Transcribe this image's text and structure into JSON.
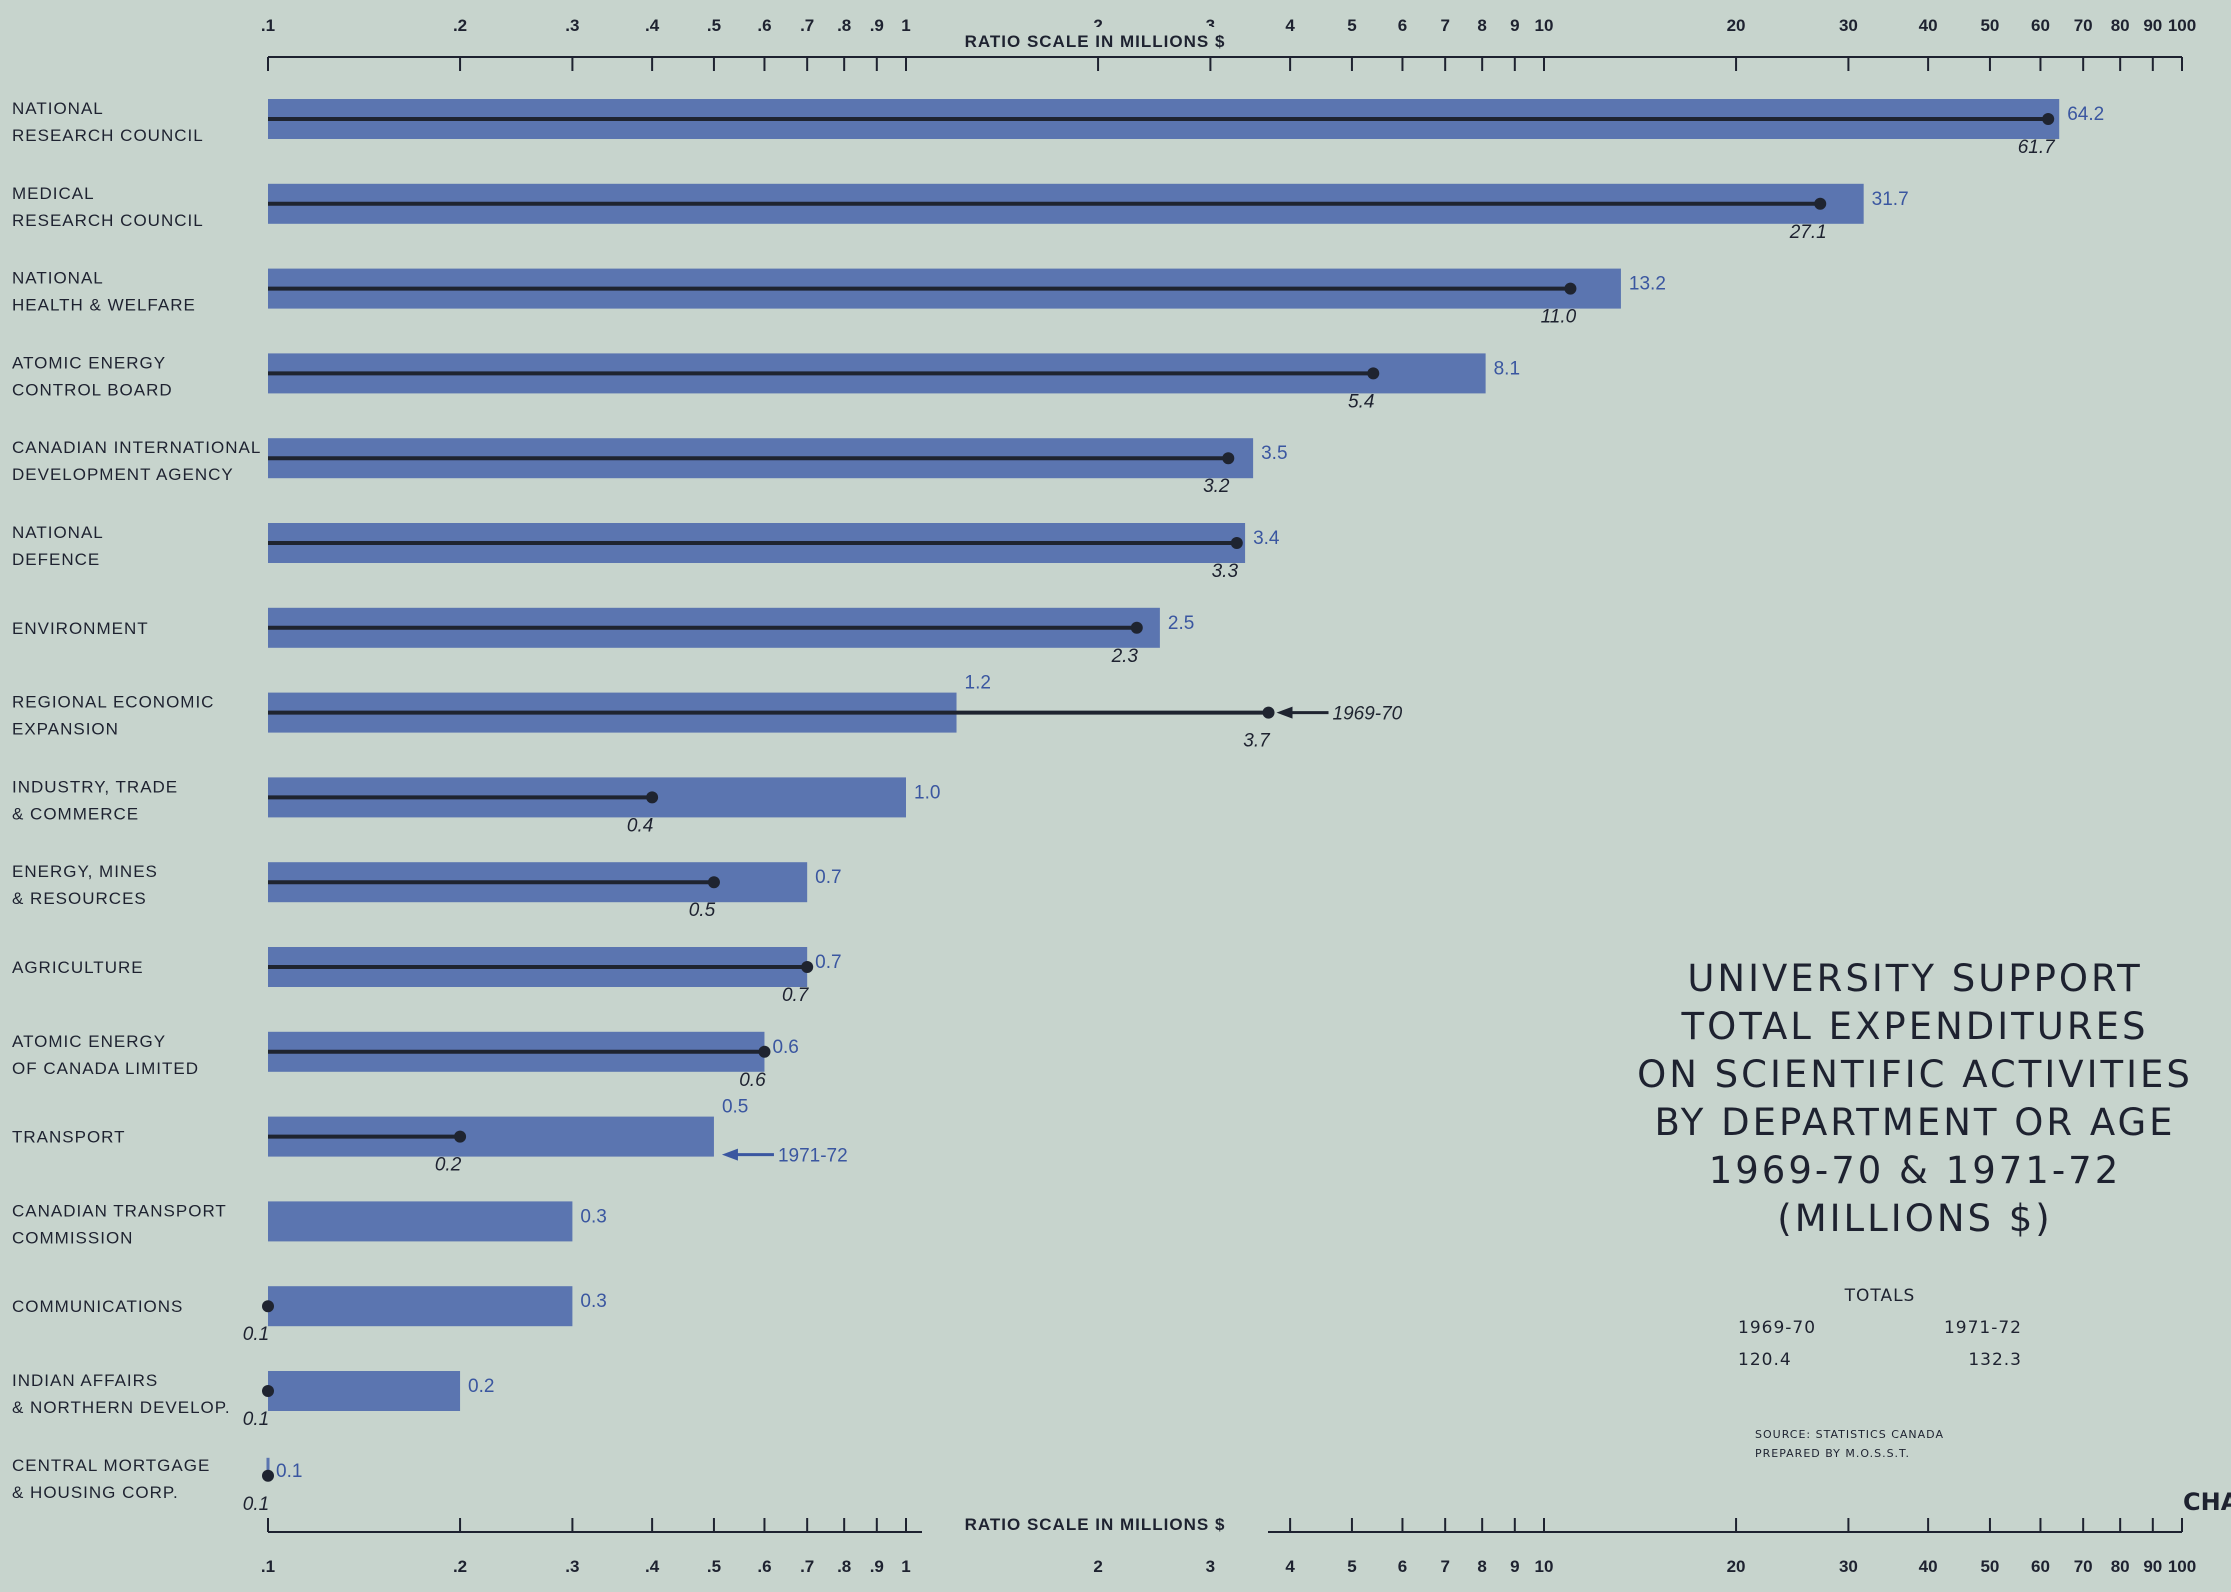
{
  "chart_data": {
    "type": "bar",
    "title_lines": [
      "UNIVERSITY SUPPORT",
      "TOTAL EXPENDITURES",
      "ON SCIENTIFIC ACTIVITIES",
      "BY DEPARTMENT OR AGE",
      "1969-70 & 1971-72",
      "(MILLIONS $)"
    ],
    "axis_label": "RATIO SCALE IN MILLIONS $",
    "x_scale": "log",
    "xlim": [
      0.1,
      100
    ],
    "tick_values": [
      0.1,
      0.2,
      0.3,
      0.4,
      0.5,
      0.6,
      0.7,
      0.8,
      0.9,
      1,
      2,
      3,
      4,
      5,
      6,
      7,
      8,
      9,
      10,
      20,
      30,
      40,
      50,
      60,
      70,
      80,
      90,
      100
    ],
    "tick_labels_top": [
      ".1",
      ".2",
      ".3",
      ".4",
      ".5",
      ".6",
      ".7",
      ".8",
      ".9",
      "1",
      "2",
      "3",
      "4",
      "5",
      "6",
      "7",
      "8",
      "9",
      "10",
      "20",
      "30",
      "40",
      "50",
      "60",
      "70",
      "80",
      "90",
      "100"
    ],
    "tick_labels_bottom": [
      ".1",
      ".2",
      ".3",
      ".4",
      ".5",
      ".6",
      ".7",
      ".8",
      ".9",
      "1",
      "2",
      "3",
      "4",
      "5",
      "6",
      "7",
      "8",
      "9",
      "10",
      "20",
      "30",
      "40",
      "50",
      "60",
      "70",
      "80",
      "90",
      "100"
    ],
    "categories": [
      [
        "NATIONAL",
        "RESEARCH COUNCIL"
      ],
      [
        "MEDICAL",
        "RESEARCH COUNCIL"
      ],
      [
        "NATIONAL",
        "HEALTH & WELFARE"
      ],
      [
        "ATOMIC ENERGY",
        "CONTROL BOARD"
      ],
      [
        "CANADIAN INTERNATIONAL",
        "DEVELOPMENT AGENCY"
      ],
      [
        "NATIONAL",
        "DEFENCE"
      ],
      [
        "ENVIRONMENT"
      ],
      [
        "REGIONAL ECONOMIC",
        "EXPANSION"
      ],
      [
        "INDUSTRY, TRADE",
        "& COMMERCE"
      ],
      [
        "ENERGY, MINES",
        "& RESOURCES"
      ],
      [
        "AGRICULTURE"
      ],
      [
        "ATOMIC ENERGY",
        "OF CANADA LIMITED"
      ],
      [
        "TRANSPORT"
      ],
      [
        "CANADIAN TRANSPORT",
        "COMMISSION"
      ],
      [
        "COMMUNICATIONS"
      ],
      [
        "INDIAN AFFAIRS",
        "& NORTHERN DEVELOP."
      ],
      [
        "CENTRAL MORTGAGE",
        "& HOUSING CORP."
      ]
    ],
    "series": [
      {
        "name": "1971-72",
        "values": [
          64.2,
          31.7,
          13.2,
          8.1,
          3.5,
          3.4,
          2.5,
          1.2,
          1.0,
          0.7,
          0.7,
          0.6,
          0.5,
          0.3,
          0.3,
          0.2,
          0.1
        ],
        "labels": [
          "64.2",
          "31.7",
          "13.2",
          "8.1",
          "3.5",
          "3.4",
          "2.5",
          "1.2",
          "1.0",
          "0.7",
          "0.7",
          "0.6",
          "0.5",
          "0.3",
          "0.3",
          "0.2",
          "0.1"
        ]
      },
      {
        "name": "1969-70",
        "values": [
          61.7,
          27.1,
          11.0,
          5.4,
          3.2,
          3.3,
          2.3,
          3.7,
          0.4,
          0.5,
          0.7,
          0.6,
          0.2,
          null,
          0.1,
          0.1,
          0.1
        ],
        "labels": [
          "61.7",
          "27.1",
          "11.0",
          "5.4",
          "3.2",
          "3.3",
          "2.3",
          "3.7",
          "0.4",
          "0.5",
          "0.7",
          "0.6",
          "0.2",
          "",
          "0.1",
          "0.1",
          "0.1"
        ]
      }
    ],
    "annotations": [
      {
        "text": "1969-70",
        "category_index": 7,
        "series": "1969-70"
      },
      {
        "text": "1971-72",
        "category_index": 12,
        "series": "1971-72"
      }
    ],
    "totals": {
      "heading": "TOTALS",
      "columns": [
        "1969-70",
        "1971-72"
      ],
      "values": [
        "120.4",
        "132.3"
      ]
    },
    "source": "SOURCE: STATISTICS CANADA",
    "prepared_by": "PREPARED BY M.O.S.S.T.",
    "chart_tag": "CHA",
    "colors": {
      "background": "#c7d4cd",
      "bar_1971_72": "#5b75b0",
      "line_1969_70": "#1f2430",
      "label_1971_72": "#3a56a0",
      "text": "#1e2230"
    }
  }
}
